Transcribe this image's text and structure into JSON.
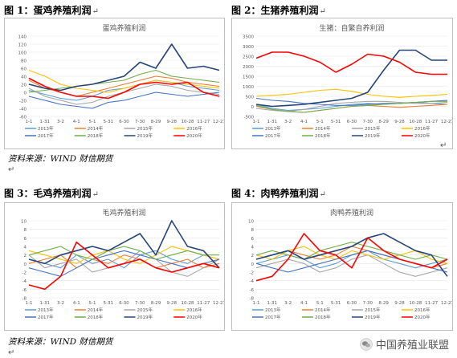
{
  "figures": [
    {
      "label": "图 1：",
      "title": "蛋鸡养殖利润"
    },
    {
      "label": "图 2：",
      "title": "生猪养殖利润"
    },
    {
      "label": "图 3：",
      "title": "毛鸡养殖利润"
    },
    {
      "label": "图 4：",
      "title": "肉鸭养殖利润"
    }
  ],
  "source_top": "资料来源：WIND 财信期货",
  "source_bottom": "资料来源：WIND 财信期货",
  "para_mark": "↵",
  "watermark": "中国养殖业联盟",
  "chart_data": [
    {
      "type": "line",
      "title": "蛋鸡养殖利润",
      "categories": [
        "1-1",
        "1-31",
        "3-2",
        "4-1",
        "5-1",
        "5-31",
        "6-30",
        "7-30",
        "8-29",
        "9-28",
        "10-28",
        "11-27",
        "12-27"
      ],
      "ylim": [
        -60,
        140
      ],
      "yticks": [
        -60,
        -40,
        -20,
        0,
        20,
        40,
        60,
        80,
        100,
        120,
        140
      ],
      "grid": true,
      "legend": "bottom",
      "series": [
        {
          "name": "2013年",
          "color": "#5b9bd5",
          "values": [
            5,
            -5,
            -15,
            -20,
            -10,
            5,
            10,
            20,
            30,
            25,
            15,
            10,
            5
          ]
        },
        {
          "name": "2014年",
          "color": "#ed7d31",
          "values": [
            30,
            10,
            0,
            -10,
            0,
            10,
            20,
            30,
            40,
            35,
            25,
            20,
            15
          ]
        },
        {
          "name": "2015年",
          "color": "#a5a5a5",
          "values": [
            10,
            -10,
            -20,
            -30,
            -25,
            -10,
            0,
            10,
            20,
            15,
            5,
            0,
            -5
          ]
        },
        {
          "name": "2016年",
          "color": "#ffc000",
          "values": [
            55,
            40,
            20,
            10,
            5,
            0,
            10,
            20,
            30,
            25,
            20,
            15,
            10
          ]
        },
        {
          "name": "2017年",
          "color": "#4472c4",
          "values": [
            -10,
            -20,
            -30,
            -35,
            -40,
            -25,
            -20,
            -10,
            0,
            -5,
            -10,
            -5,
            0
          ]
        },
        {
          "name": "2018年",
          "color": "#70ad47",
          "values": [
            0,
            5,
            10,
            15,
            20,
            25,
            30,
            45,
            55,
            40,
            35,
            30,
            25
          ]
        },
        {
          "name": "2019年",
          "color": "#264478",
          "values": [
            20,
            10,
            5,
            15,
            20,
            30,
            40,
            75,
            60,
            120,
            60,
            65,
            55
          ]
        },
        {
          "name": "2020年",
          "color": "#ff0000",
          "values": [
            35,
            15,
            0,
            -10,
            -10,
            -15,
            0,
            20,
            25,
            20,
            25,
            0,
            -10
          ]
        }
      ]
    },
    {
      "type": "line",
      "title": "生猪：自繁自养利润",
      "categories": [
        "1-1",
        "1-31",
        "3-2",
        "4-1",
        "5-1",
        "5-31",
        "6-30",
        "7-30",
        "8-29",
        "9-28",
        "10-28",
        "11-27",
        "12-27"
      ],
      "ylim": [
        -500,
        3500
      ],
      "yticks": [
        -500,
        0,
        500,
        1000,
        1500,
        2000,
        2500,
        3000,
        3500
      ],
      "grid": true,
      "legend": "bottom",
      "series": [
        {
          "name": "2013年",
          "color": "#5b9bd5",
          "values": [
            100,
            -100,
            -200,
            -150,
            -100,
            0,
            100,
            150,
            100,
            150,
            200,
            150,
            100
          ]
        },
        {
          "name": "2014年",
          "color": "#ed7d31",
          "values": [
            0,
            -150,
            -250,
            -300,
            -200,
            -100,
            0,
            50,
            0,
            -50,
            0,
            50,
            100
          ]
        },
        {
          "name": "2015年",
          "color": "#a5a5a5",
          "values": [
            -100,
            -200,
            -250,
            -150,
            0,
            150,
            200,
            250,
            250,
            200,
            150,
            150,
            200
          ]
        },
        {
          "name": "2016年",
          "color": "#ffc000",
          "values": [
            500,
            550,
            600,
            700,
            800,
            850,
            750,
            600,
            500,
            450,
            500,
            550,
            600
          ]
        },
        {
          "name": "2017年",
          "color": "#4472c4",
          "values": [
            400,
            300,
            250,
            150,
            100,
            50,
            50,
            100,
            150,
            150,
            200,
            250,
            300
          ]
        },
        {
          "name": "2018年",
          "color": "#70ad47",
          "values": [
            50,
            -150,
            -250,
            -300,
            -200,
            -100,
            0,
            50,
            100,
            150,
            200,
            250,
            250
          ]
        },
        {
          "name": "2019年",
          "color": "#264478",
          "values": [
            100,
            0,
            50,
            100,
            200,
            300,
            400,
            700,
            1800,
            2800,
            2800,
            2300,
            2300
          ]
        },
        {
          "name": "2020年",
          "color": "#ff0000",
          "values": [
            2400,
            2700,
            2700,
            2500,
            2200,
            1700,
            2100,
            2600,
            2500,
            2200,
            1700,
            1600,
            1600
          ]
        }
      ]
    },
    {
      "type": "line",
      "title": "毛鸡养殖利润",
      "categories": [
        "1-1",
        "1-31",
        "3-2",
        "4-1",
        "5-1",
        "5-31",
        "6-30",
        "7-30",
        "8-29",
        "9-28",
        "10-28",
        "11-27",
        "12-27"
      ],
      "ylim": [
        -8,
        10
      ],
      "yticks": [
        -8,
        -6,
        -4,
        -2,
        0,
        2,
        4,
        6,
        8,
        10
      ],
      "grid": true,
      "legend": "bottom",
      "series": [
        {
          "name": "2013年",
          "color": "#5b9bd5",
          "values": [
            1,
            0,
            -1,
            2,
            0,
            1,
            -1,
            2,
            3,
            1,
            0,
            2,
            1
          ]
        },
        {
          "name": "2014年",
          "color": "#ed7d31",
          "values": [
            0,
            1,
            2,
            -1,
            1,
            0,
            2,
            1,
            -1,
            0,
            1,
            -1,
            0
          ]
        },
        {
          "name": "2015年",
          "color": "#a5a5a5",
          "values": [
            2,
            -1,
            0,
            1,
            -2,
            -1,
            0,
            3,
            1,
            -2,
            -3,
            -1,
            1
          ]
        },
        {
          "name": "2016年",
          "color": "#ffc000",
          "values": [
            3,
            2,
            1,
            0,
            2,
            3,
            1,
            0,
            2,
            4,
            3,
            2,
            1
          ]
        },
        {
          "name": "2017年",
          "color": "#4472c4",
          "values": [
            -1,
            -2,
            -3,
            -1,
            1,
            2,
            3,
            2,
            1,
            0,
            -1,
            0,
            1
          ]
        },
        {
          "name": "2018年",
          "color": "#70ad47",
          "values": [
            2,
            3,
            4,
            2,
            1,
            3,
            4,
            3,
            1,
            2,
            3,
            2,
            2
          ]
        },
        {
          "name": "2019年",
          "color": "#264478",
          "values": [
            1,
            0,
            2,
            3,
            4,
            3,
            5,
            7,
            2,
            10,
            4,
            3,
            -1
          ]
        },
        {
          "name": "2020年",
          "color": "#ff0000",
          "values": [
            -5,
            -6,
            -3,
            5,
            2,
            -1,
            0,
            1,
            -1,
            -2,
            -1,
            0,
            -1
          ]
        }
      ]
    },
    {
      "type": "line",
      "title": "肉鸭养殖利润",
      "categories": [
        "1-1",
        "1-31",
        "3-2",
        "4-1",
        "5-1",
        "5-31",
        "6-30",
        "7-30",
        "8-29",
        "9-28",
        "10-28",
        "11-27",
        "12-27"
      ],
      "ylim": [
        -8,
        10
      ],
      "yticks": [
        -8,
        -6,
        -4,
        -2,
        0,
        2,
        4,
        6,
        8,
        10
      ],
      "grid": true,
      "legend": "bottom",
      "series": [
        {
          "name": "2013年",
          "color": "#5b9bd5",
          "values": [
            0,
            1,
            2,
            1,
            -1,
            0,
            2,
            3,
            1,
            0,
            -1,
            0,
            1
          ]
        },
        {
          "name": "2014年",
          "color": "#ed7d31",
          "values": [
            1,
            2,
            3,
            2,
            1,
            2,
            4,
            3,
            2,
            1,
            0,
            -1,
            0
          ]
        },
        {
          "name": "2015年",
          "color": "#a5a5a5",
          "values": [
            -1,
            0,
            1,
            0,
            -2,
            -1,
            1,
            2,
            0,
            -2,
            -3,
            -2,
            -1
          ]
        },
        {
          "name": "2016年",
          "color": "#ffc000",
          "values": [
            2,
            1,
            3,
            4,
            2,
            1,
            3,
            2,
            1,
            2,
            3,
            1,
            0
          ]
        },
        {
          "name": "2017年",
          "color": "#4472c4",
          "values": [
            0,
            -1,
            -2,
            -1,
            0,
            1,
            2,
            3,
            2,
            1,
            0,
            -1,
            -2
          ]
        },
        {
          "name": "2018年",
          "color": "#70ad47",
          "values": [
            2,
            3,
            2,
            1,
            3,
            4,
            5,
            4,
            3,
            2,
            1,
            2,
            1
          ]
        },
        {
          "name": "2019年",
          "color": "#264478",
          "values": [
            1,
            2,
            3,
            1,
            2,
            3,
            4,
            6,
            7,
            5,
            3,
            2,
            -3
          ]
        },
        {
          "name": "2020年",
          "color": "#ff0000",
          "values": [
            -4,
            -3,
            1,
            7,
            3,
            2,
            -1,
            6,
            3,
            1,
            0,
            -1,
            1
          ]
        }
      ]
    }
  ]
}
